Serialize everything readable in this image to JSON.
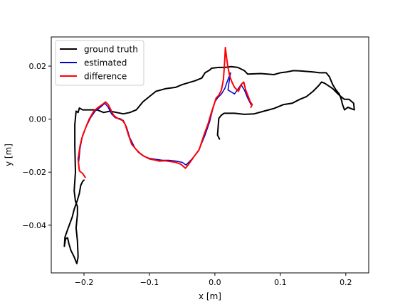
{
  "chart_data": {
    "type": "line",
    "title": "",
    "xlabel": "x [m]",
    "ylabel": "y [m]",
    "xlim": [
      -0.25,
      0.235
    ],
    "ylim": [
      -0.058,
      0.031
    ],
    "xticks": [
      -0.2,
      -0.1,
      0.0,
      0.1,
      0.2
    ],
    "xtick_labels": [
      "−0.2",
      "−0.1",
      "0.0",
      "0.1",
      "0.2"
    ],
    "yticks": [
      -0.04,
      -0.02,
      0.0,
      0.02
    ],
    "ytick_labels": [
      "−0.04",
      "−0.02",
      "0.00",
      "0.02"
    ],
    "grid": false,
    "legend_position": "upper-left",
    "series": [
      {
        "name": "ground truth",
        "color": "#000000",
        "points": [
          [
            0.007,
            -0.0075
          ],
          [
            0.004,
            -0.006
          ],
          [
            0.006,
            0.0003
          ],
          [
            0.01,
            0.0015
          ],
          [
            0.014,
            0.0022
          ],
          [
            0.03,
            0.0022
          ],
          [
            0.045,
            0.0018
          ],
          [
            0.06,
            0.002
          ],
          [
            0.075,
            0.003
          ],
          [
            0.09,
            0.004
          ],
          [
            0.105,
            0.0055
          ],
          [
            0.118,
            0.006
          ],
          [
            0.13,
            0.0075
          ],
          [
            0.14,
            0.0085
          ],
          [
            0.15,
            0.0105
          ],
          [
            0.158,
            0.0125
          ],
          [
            0.163,
            0.014
          ],
          [
            0.168,
            0.0135
          ],
          [
            0.18,
            0.0115
          ],
          [
            0.188,
            0.0095
          ],
          [
            0.195,
            0.008
          ],
          [
            0.198,
            0.0075
          ],
          [
            0.205,
            0.0075
          ],
          [
            0.212,
            0.006
          ],
          [
            0.213,
            0.0035
          ],
          [
            0.203,
            0.0045
          ],
          [
            0.198,
            0.0035
          ],
          [
            0.195,
            0.0055
          ],
          [
            0.193,
            0.0075
          ],
          [
            0.19,
            0.0095
          ],
          [
            0.185,
            0.011
          ],
          [
            0.18,
            0.013
          ],
          [
            0.175,
            0.016
          ],
          [
            0.17,
            0.0175
          ],
          [
            0.16,
            0.0175
          ],
          [
            0.15,
            0.0178
          ],
          [
            0.14,
            0.018
          ],
          [
            0.13,
            0.0182
          ],
          [
            0.12,
            0.0183
          ],
          [
            0.11,
            0.0178
          ],
          [
            0.1,
            0.0175
          ],
          [
            0.09,
            0.0168
          ],
          [
            0.07,
            0.0172
          ],
          [
            0.05,
            0.017
          ],
          [
            0.045,
            0.0183
          ],
          [
            0.035,
            0.0195
          ],
          [
            0.025,
            0.0198
          ],
          [
            0.015,
            0.0195
          ],
          [
            0.005,
            0.0195
          ],
          [
            -0.005,
            0.0192
          ],
          [
            -0.008,
            0.0185
          ],
          [
            -0.015,
            0.0175
          ],
          [
            -0.02,
            0.0155
          ],
          [
            -0.03,
            0.0145
          ],
          [
            -0.05,
            0.013
          ],
          [
            -0.06,
            0.012
          ],
          [
            -0.075,
            0.0115
          ],
          [
            -0.09,
            0.0105
          ],
          [
            -0.1,
            0.0085
          ],
          [
            -0.11,
            0.0065
          ],
          [
            -0.12,
            0.0035
          ],
          [
            -0.13,
            0.0025
          ],
          [
            -0.14,
            0.002
          ],
          [
            -0.15,
            0.0025
          ],
          [
            -0.16,
            0.003
          ],
          [
            -0.17,
            0.0025
          ],
          [
            -0.18,
            0.0035
          ],
          [
            -0.192,
            0.0035
          ],
          [
            -0.202,
            0.0035
          ],
          [
            -0.207,
            0.0042
          ],
          [
            -0.209,
            0.0025
          ],
          [
            -0.212,
            0.003
          ],
          [
            -0.214,
            -0.002
          ],
          [
            -0.214,
            -0.01
          ],
          [
            -0.213,
            -0.02
          ],
          [
            -0.215,
            -0.027
          ],
          [
            -0.213,
            -0.031
          ],
          [
            -0.21,
            -0.033
          ],
          [
            -0.21,
            -0.036
          ],
          [
            -0.212,
            -0.041
          ],
          [
            -0.21,
            -0.046
          ],
          [
            -0.209,
            -0.052
          ],
          [
            -0.211,
            -0.0545
          ],
          [
            -0.215,
            -0.052
          ],
          [
            -0.22,
            -0.0495
          ],
          [
            -0.223,
            -0.047
          ],
          [
            -0.225,
            -0.0448
          ],
          [
            -0.228,
            -0.045
          ],
          [
            -0.23,
            -0.048
          ],
          [
            -0.229,
            -0.0445
          ],
          [
            -0.224,
            -0.041
          ],
          [
            -0.218,
            -0.037
          ],
          [
            -0.215,
            -0.034
          ],
          [
            -0.212,
            -0.032
          ],
          [
            -0.21,
            -0.0305
          ],
          [
            -0.207,
            -0.028
          ],
          [
            -0.205,
            -0.025
          ],
          [
            -0.202,
            -0.0235
          ],
          [
            -0.2,
            -0.023
          ]
        ]
      },
      {
        "name": "estimated",
        "color": "#0000cc",
        "points": [
          [
            -0.208,
            -0.016
          ],
          [
            -0.206,
            -0.011
          ],
          [
            -0.202,
            -0.006
          ],
          [
            -0.196,
            -0.0025
          ],
          [
            -0.19,
            0.0005
          ],
          [
            -0.183,
            0.003
          ],
          [
            -0.175,
            0.0045
          ],
          [
            -0.168,
            0.006
          ],
          [
            -0.163,
            0.0045
          ],
          [
            -0.158,
            0.002
          ],
          [
            -0.152,
            0.0005
          ],
          [
            -0.145,
            0.0002
          ],
          [
            -0.14,
            -0.0005
          ],
          [
            -0.135,
            -0.003
          ],
          [
            -0.13,
            -0.007
          ],
          [
            -0.123,
            -0.0105
          ],
          [
            -0.117,
            -0.0125
          ],
          [
            -0.11,
            -0.0138
          ],
          [
            -0.1,
            -0.0148
          ],
          [
            -0.09,
            -0.0152
          ],
          [
            -0.08,
            -0.0155
          ],
          [
            -0.07,
            -0.0155
          ],
          [
            -0.06,
            -0.0158
          ],
          [
            -0.05,
            -0.0163
          ],
          [
            -0.044,
            -0.0173
          ],
          [
            -0.035,
            -0.015
          ],
          [
            -0.025,
            -0.012
          ],
          [
            -0.015,
            -0.006
          ],
          [
            -0.008,
            -0.001
          ],
          [
            -0.004,
            0.003
          ],
          [
            0.0,
            0.0065
          ],
          [
            0.004,
            0.008
          ],
          [
            0.01,
            0.0095
          ],
          [
            0.015,
            0.0115
          ],
          [
            0.02,
            0.015
          ],
          [
            0.024,
            0.0175
          ],
          [
            0.022,
            0.0145
          ],
          [
            0.02,
            0.011
          ],
          [
            0.03,
            0.0095
          ],
          [
            0.04,
            0.013
          ],
          [
            0.045,
            0.011
          ],
          [
            0.05,
            0.008
          ],
          [
            0.055,
            0.0055
          ]
        ]
      },
      {
        "name": "difference",
        "color": "#ff0000",
        "points": [
          [
            -0.198,
            -0.022
          ],
          [
            -0.202,
            -0.0205
          ],
          [
            -0.207,
            -0.0195
          ],
          [
            -0.209,
            -0.015
          ],
          [
            -0.206,
            -0.01
          ],
          [
            -0.203,
            -0.007
          ],
          [
            -0.197,
            -0.003
          ],
          [
            -0.192,
            0.0
          ],
          [
            -0.185,
            0.003
          ],
          [
            -0.178,
            0.0045
          ],
          [
            -0.172,
            0.0055
          ],
          [
            -0.167,
            0.0065
          ],
          [
            -0.163,
            0.0055
          ],
          [
            -0.16,
            0.004
          ],
          [
            -0.155,
            0.0015
          ],
          [
            -0.15,
            0.0005
          ],
          [
            -0.146,
            0.0
          ],
          [
            -0.141,
            -0.0005
          ],
          [
            -0.137,
            -0.002
          ],
          [
            -0.132,
            -0.006
          ],
          [
            -0.127,
            -0.0095
          ],
          [
            -0.12,
            -0.0115
          ],
          [
            -0.114,
            -0.013
          ],
          [
            -0.108,
            -0.014
          ],
          [
            -0.1,
            -0.015
          ],
          [
            -0.092,
            -0.0154
          ],
          [
            -0.085,
            -0.0158
          ],
          [
            -0.076,
            -0.0157
          ],
          [
            -0.068,
            -0.016
          ],
          [
            -0.06,
            -0.0163
          ],
          [
            -0.052,
            -0.017
          ],
          [
            -0.045,
            -0.0185
          ],
          [
            -0.04,
            -0.017
          ],
          [
            -0.033,
            -0.0145
          ],
          [
            -0.024,
            -0.0115
          ],
          [
            -0.016,
            -0.0055
          ],
          [
            -0.01,
            -0.0015
          ],
          [
            -0.006,
            0.002
          ],
          [
            -0.002,
            0.005
          ],
          [
            0.002,
            0.008
          ],
          [
            0.006,
            0.009
          ],
          [
            0.01,
            0.011
          ],
          [
            0.013,
            0.015
          ],
          [
            0.015,
            0.022
          ],
          [
            0.016,
            0.027
          ],
          [
            0.018,
            0.023
          ],
          [
            0.02,
            0.0195
          ],
          [
            0.023,
            0.016
          ],
          [
            0.026,
            0.014
          ],
          [
            0.03,
            0.012
          ],
          [
            0.036,
            0.0105
          ],
          [
            0.04,
            0.013
          ],
          [
            0.044,
            0.014
          ],
          [
            0.047,
            0.011
          ],
          [
            0.051,
            0.0085
          ],
          [
            0.054,
            0.0065
          ],
          [
            0.057,
            0.0055
          ],
          [
            0.055,
            0.0045
          ]
        ]
      }
    ]
  }
}
